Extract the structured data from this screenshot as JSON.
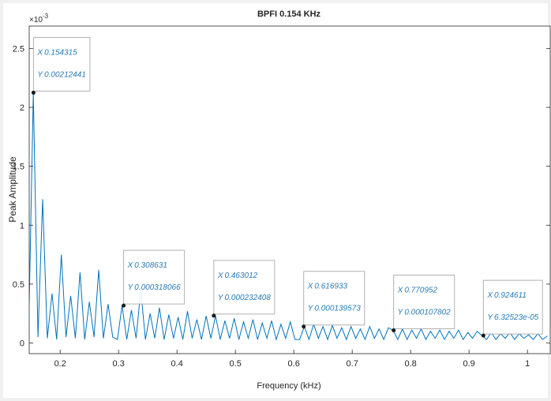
{
  "chart_data": {
    "type": "line",
    "title": "BPFI 0.154 KHz",
    "x_label": "Frequency (kHz)",
    "y_label": "Peak Amplitude",
    "y_multiplier_base": "×10",
    "y_multiplier_exponent": "-3",
    "xlim": [
      0.147,
      1.039
    ],
    "ylim": [
      -0.09,
      2.69
    ],
    "xticks": [
      0.2,
      0.3,
      0.4,
      0.5,
      0.6,
      0.7,
      0.8,
      0.9,
      1
    ],
    "yticks": [
      0,
      0.5,
      1,
      1.5,
      2,
      2.5
    ],
    "grid": false,
    "x": [
      0.146,
      0.154,
      0.162,
      0.17,
      0.178,
      0.186,
      0.194,
      0.202,
      0.21,
      0.218,
      0.226,
      0.234,
      0.242,
      0.25,
      0.258,
      0.266,
      0.274,
      0.282,
      0.29,
      0.298,
      0.306,
      0.314,
      0.322,
      0.33,
      0.338,
      0.346,
      0.354,
      0.362,
      0.37,
      0.378,
      0.386,
      0.394,
      0.402,
      0.41,
      0.418,
      0.426,
      0.434,
      0.442,
      0.45,
      0.458,
      0.466,
      0.474,
      0.482,
      0.49,
      0.498,
      0.506,
      0.514,
      0.522,
      0.53,
      0.538,
      0.546,
      0.554,
      0.562,
      0.57,
      0.578,
      0.586,
      0.594,
      0.602,
      0.61,
      0.618,
      0.626,
      0.634,
      0.642,
      0.65,
      0.658,
      0.666,
      0.674,
      0.682,
      0.69,
      0.698,
      0.706,
      0.714,
      0.722,
      0.73,
      0.738,
      0.746,
      0.754,
      0.762,
      0.77,
      0.778,
      0.786,
      0.794,
      0.802,
      0.81,
      0.818,
      0.826,
      0.834,
      0.842,
      0.85,
      0.858,
      0.866,
      0.874,
      0.882,
      0.89,
      0.898,
      0.906,
      0.914,
      0.922,
      0.93,
      0.938,
      0.946,
      0.954,
      0.962,
      0.97,
      0.978,
      0.986,
      0.994,
      1.002,
      1.01,
      1.018,
      1.026,
      1.034
    ],
    "series": [
      {
        "color": "#0072bd",
        "values": [
          0.06,
          2.12,
          0.05,
          1.22,
          0.04,
          0.42,
          0.03,
          0.75,
          0.05,
          0.4,
          0.04,
          0.6,
          0.03,
          0.35,
          0.05,
          0.62,
          0.04,
          0.33,
          0.05,
          0.03,
          0.318,
          0.03,
          0.28,
          0.04,
          0.45,
          0.03,
          0.25,
          0.04,
          0.3,
          0.03,
          0.24,
          0.04,
          0.22,
          0.03,
          0.27,
          0.04,
          0.2,
          0.03,
          0.23,
          0.04,
          0.232,
          0.03,
          0.19,
          0.04,
          0.21,
          0.03,
          0.18,
          0.04,
          0.2,
          0.03,
          0.17,
          0.04,
          0.19,
          0.03,
          0.16,
          0.04,
          0.18,
          0.03,
          0.03,
          0.14,
          0.03,
          0.16,
          0.04,
          0.14,
          0.03,
          0.15,
          0.04,
          0.13,
          0.03,
          0.14,
          0.04,
          0.12,
          0.03,
          0.14,
          0.04,
          0.12,
          0.03,
          0.13,
          0.108,
          0.03,
          0.12,
          0.03,
          0.11,
          0.04,
          0.12,
          0.03,
          0.1,
          0.04,
          0.11,
          0.03,
          0.1,
          0.04,
          0.11,
          0.03,
          0.09,
          0.04,
          0.1,
          0.063,
          0.03,
          0.09,
          0.03,
          0.08,
          0.04,
          0.09,
          0.03,
          0.08,
          0.04,
          0.07,
          0.03,
          0.08,
          0.03,
          0.06
        ]
      }
    ],
    "datatips": {
      "x_prefix": "X",
      "y_prefix": "Y",
      "color": "#1a1a1a",
      "x": [
        0.154315,
        0.308631,
        0.463012,
        0.616933,
        0.770952,
        0.924611
      ],
      "values": [
        2.12441,
        0.318066,
        0.232408,
        0.139573,
        0.107802,
        0.0632523
      ],
      "value_labels": [
        "0.00212441",
        "0.000318066",
        "0.000232408",
        "0.000139573",
        "0.000107802",
        "6.32523e-05"
      ]
    }
  }
}
